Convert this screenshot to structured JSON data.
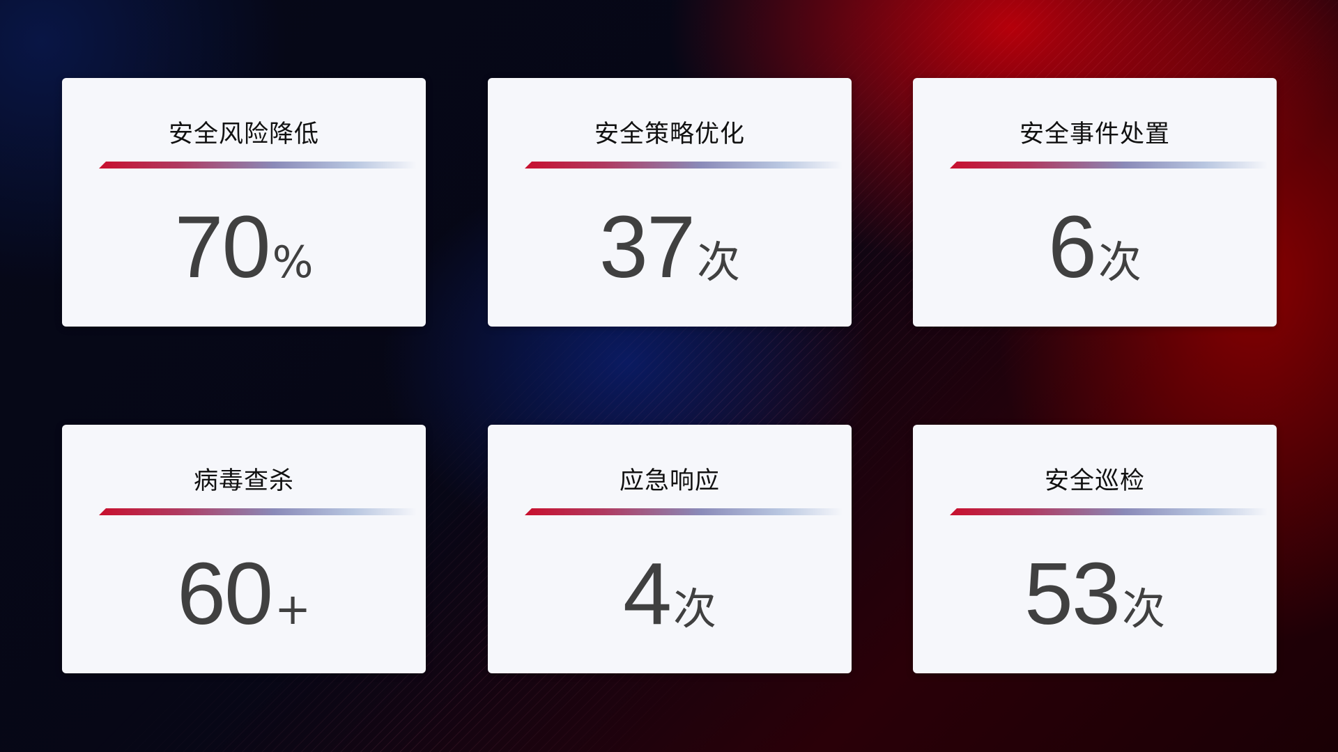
{
  "cards": [
    {
      "title": "安全风险降低",
      "value": "70",
      "unit": "%"
    },
    {
      "title": "安全策略优化",
      "value": "37",
      "unit": "次"
    },
    {
      "title": "安全事件处置",
      "value": "6",
      "unit": "次"
    },
    {
      "title": "病毒查杀",
      "value": "60",
      "unit": "+"
    },
    {
      "title": "应急响应",
      "value": "4",
      "unit": "次"
    },
    {
      "title": "安全巡检",
      "value": "53",
      "unit": "次"
    }
  ],
  "colors": {
    "accent_red": "#c8102e",
    "accent_blue": "#8a8ab8",
    "card_bg": "#f6f7fb",
    "value_text": "#404040"
  }
}
